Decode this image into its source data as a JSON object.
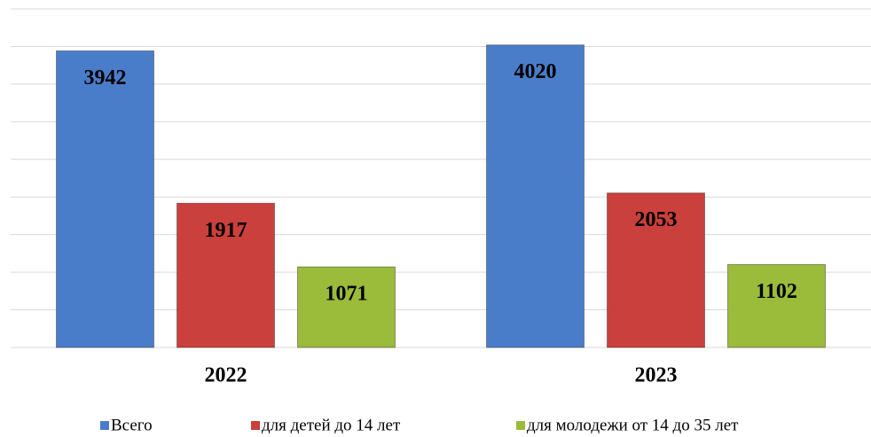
{
  "chart_data": {
    "type": "bar",
    "categories": [
      "2022",
      "2023"
    ],
    "series": [
      {
        "name": "Всего",
        "color": "#4a7dc9",
        "values": [
          3942,
          4020
        ]
      },
      {
        "name": "для детей до 14 лет",
        "color": "#c9403c",
        "values": [
          1917,
          2053
        ]
      },
      {
        "name": "для молодежи от 14 до 35 лет",
        "color": "#9bbb3b",
        "values": [
          1071,
          1102
        ]
      }
    ],
    "ylim": [
      0,
      4500
    ],
    "yticks": [
      0,
      500,
      1000,
      1500,
      2000,
      2500,
      3000,
      3500,
      4000,
      4500
    ],
    "grid": true,
    "legend": "bottom"
  }
}
